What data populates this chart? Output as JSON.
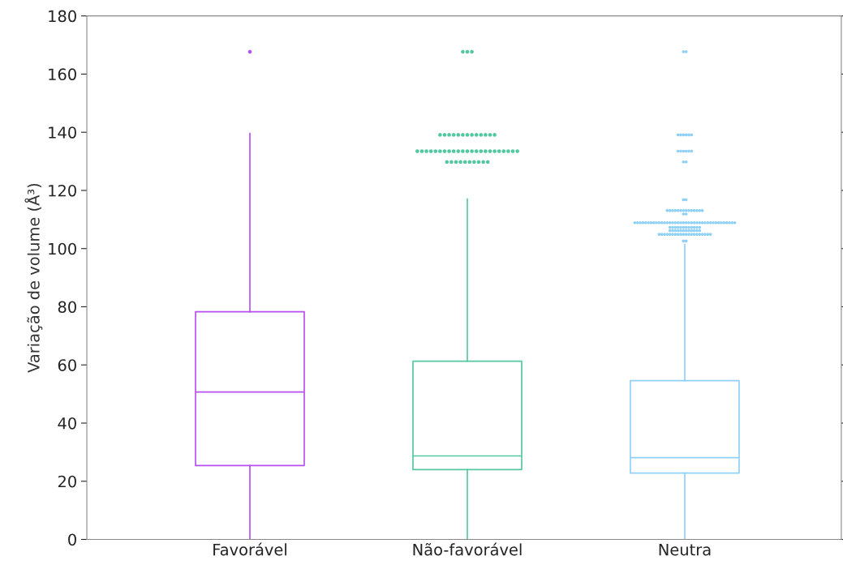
{
  "chart_data": {
    "type": "box",
    "ylabel": "Variação de volume (Å³)",
    "categories": [
      "Favorável",
      "Não-favorável",
      "Neutra"
    ],
    "colors": [
      "#b84ff0",
      "#52c7a0",
      "#8fd0f5"
    ],
    "boxes": [
      {
        "low": 0,
        "q1": 25.4,
        "median": 50.7,
        "q3": 78.3,
        "high": 139.6,
        "outliers": [
          167.7
        ]
      },
      {
        "low": 0,
        "q1": 24.0,
        "median": 28.7,
        "q3": 61.3,
        "high": 117.0,
        "outliers": [
          167.7,
          167.7,
          167.7,
          139.1,
          139.1,
          139.1,
          139.1,
          139.1,
          139.1,
          139.1,
          139.1,
          139.1,
          139.1,
          139.1,
          139.1,
          139.1,
          133.5,
          133.5,
          133.5,
          133.5,
          133.5,
          133.5,
          133.5,
          133.5,
          133.5,
          133.5,
          133.5,
          133.5,
          133.5,
          133.5,
          133.5,
          133.5,
          133.5,
          133.5,
          133.5,
          133.5,
          133.5,
          133.5,
          133.5,
          129.8,
          129.8,
          129.8,
          129.8,
          129.8,
          129.8,
          129.8,
          129.8,
          129.8,
          129.8
        ]
      },
      {
        "low": 0,
        "q1": 22.8,
        "median": 28.1,
        "q3": 54.6,
        "high": 101.5,
        "outliers": [
          167.7,
          167.7,
          139.1,
          139.1,
          139.1,
          139.1,
          139.1,
          139.1,
          133.5,
          133.5,
          133.5,
          133.5,
          133.5,
          133.5,
          129.8,
          129.8,
          116.8,
          116.8,
          113.1,
          113.1,
          113.1,
          113.1,
          113.1,
          113.1,
          113.1,
          113.1,
          113.1,
          113.1,
          113.1,
          113.1,
          113.1,
          113.1,
          111.9,
          111.9,
          108.9,
          108.9,
          108.9,
          108.9,
          108.9,
          108.9,
          108.9,
          108.9,
          108.9,
          108.9,
          108.9,
          108.9,
          108.9,
          108.9,
          108.9,
          108.9,
          108.9,
          108.9,
          108.9,
          108.9,
          108.9,
          108.9,
          108.9,
          108.9,
          108.9,
          108.9,
          108.9,
          108.9,
          108.9,
          108.9,
          108.9,
          108.9,
          108.9,
          108.9,
          108.9,
          108.9,
          108.9,
          108.9,
          107.3,
          107.3,
          107.3,
          107.3,
          107.3,
          107.3,
          107.3,
          107.3,
          107.3,
          107.3,
          107.3,
          107.3,
          106.2,
          106.2,
          106.2,
          106.2,
          106.2,
          106.2,
          106.2,
          106.2,
          106.2,
          106.2,
          106.2,
          106.2,
          104.9,
          104.9,
          104.9,
          104.9,
          104.9,
          104.9,
          104.9,
          104.9,
          104.9,
          104.9,
          104.9,
          104.9,
          104.9,
          104.9,
          104.9,
          104.9,
          104.9,
          104.9,
          104.9,
          104.9,
          102.6,
          102.6
        ]
      }
    ],
    "ylim": [
      0,
      180
    ],
    "yticks": [
      0,
      20,
      40,
      60,
      80,
      100,
      120,
      140,
      160,
      180
    ],
    "grid": false
  }
}
